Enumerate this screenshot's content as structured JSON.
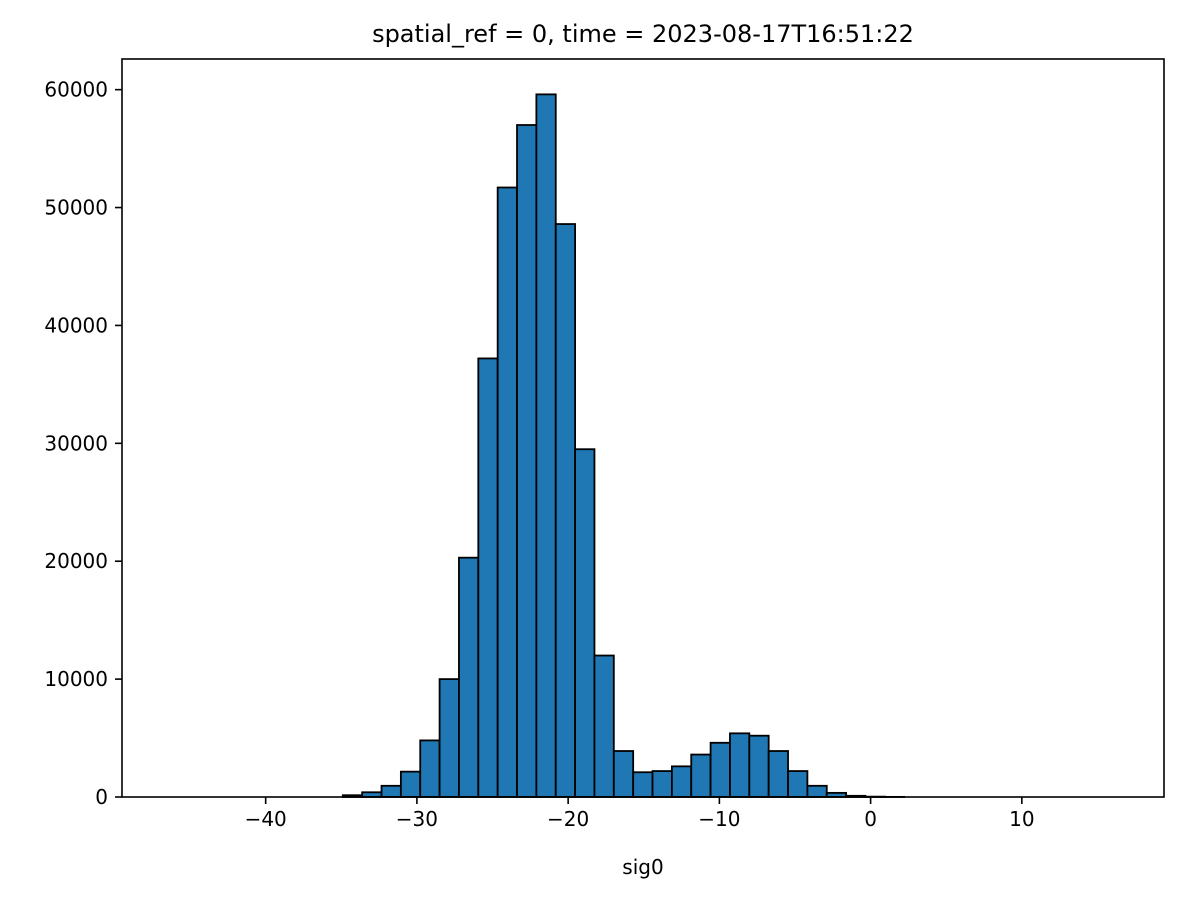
{
  "chart_data": {
    "type": "bar",
    "title": "spatial_ref = 0, time = 2023-08-17T16:51:22",
    "xlabel": "sig0",
    "ylabel": "",
    "xlim": [
      -49.5,
      19.4
    ],
    "ylim": [
      0,
      62600
    ],
    "grid": false,
    "legend": "none",
    "bar_color": "#1f77b4",
    "edge_color": "#000000",
    "xticks": [
      -40,
      -30,
      -20,
      -10,
      0,
      10
    ],
    "xtick_labels": [
      "−40",
      "−30",
      "−20",
      "−10",
      "0",
      "10"
    ],
    "yticks": [
      0,
      10000,
      20000,
      30000,
      40000,
      50000,
      60000
    ],
    "ytick_labels": [
      "0",
      "10000",
      "20000",
      "30000",
      "40000",
      "50000",
      "60000"
    ],
    "bin_edges": [
      -47.7,
      -46.42,
      -45.14,
      -43.86,
      -42.58,
      -41.3,
      -40.02,
      -38.74,
      -37.46,
      -36.18,
      -34.9,
      -33.62,
      -32.34,
      -31.06,
      -29.78,
      -28.5,
      -27.22,
      -25.94,
      -24.66,
      -23.38,
      -22.1,
      -20.82,
      -19.54,
      -18.26,
      -16.98,
      -15.7,
      -14.42,
      -13.14,
      -11.86,
      -10.58,
      -9.3,
      -8.02,
      -6.74,
      -5.46,
      -4.18,
      -2.9,
      -1.62,
      -0.34,
      0.94,
      2.22,
      3.5,
      4.78,
      6.06,
      7.34,
      8.62,
      9.9,
      11.18,
      12.46,
      13.74,
      15.02,
      16.3
    ],
    "values": [
      0,
      0,
      0,
      0,
      0,
      0,
      0,
      0,
      0,
      0,
      150,
      400,
      950,
      2150,
      4800,
      10000,
      20300,
      37200,
      51700,
      57000,
      59600,
      48600,
      29500,
      12000,
      3900,
      2100,
      2200,
      2600,
      3600,
      4600,
      5400,
      5200,
      3900,
      2200,
      950,
      350,
      100,
      30,
      10,
      0,
      0,
      0,
      0,
      0,
      0,
      0,
      0,
      0,
      0,
      0
    ]
  }
}
